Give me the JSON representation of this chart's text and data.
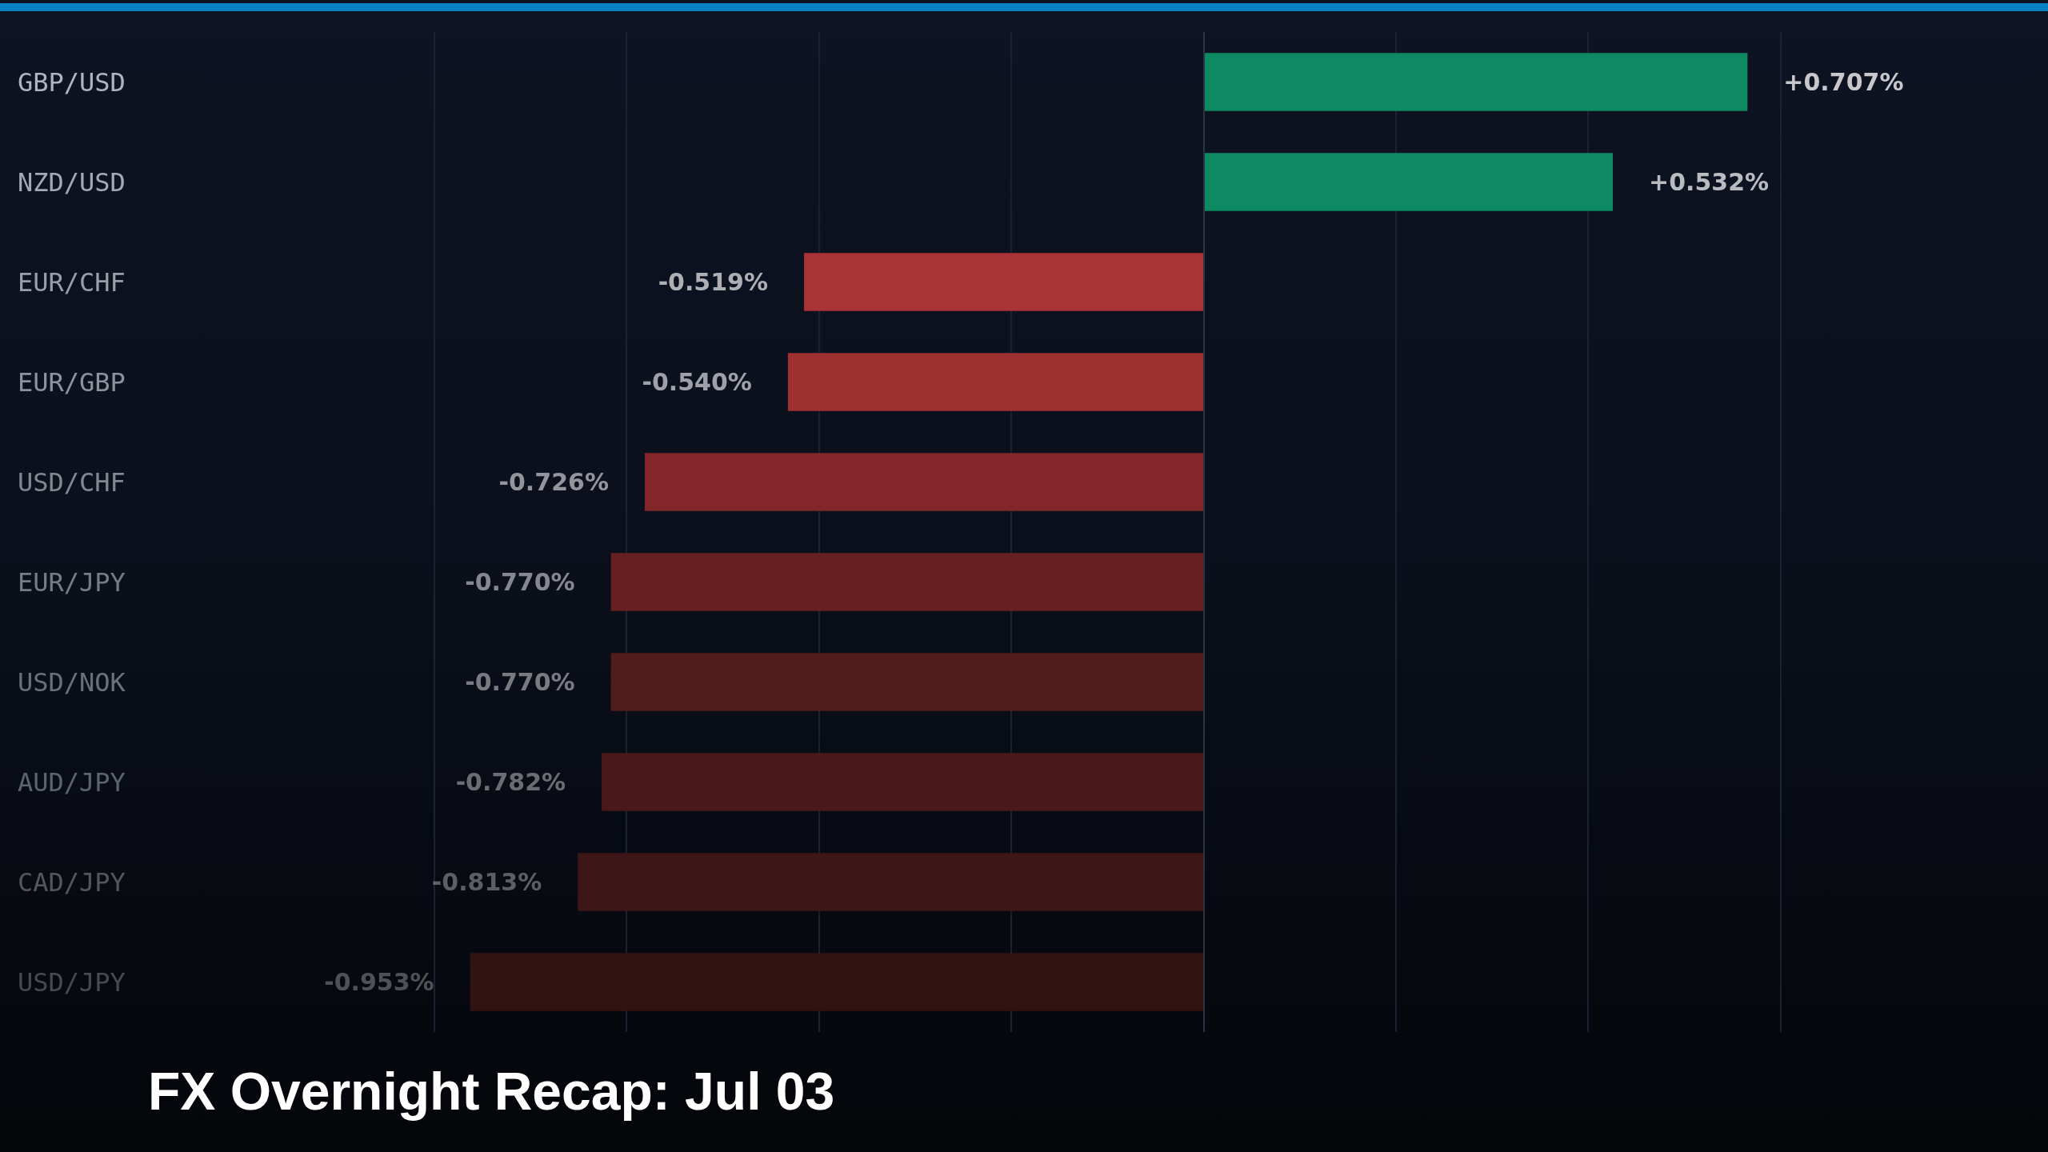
{
  "chart_data": {
    "type": "bar",
    "orientation": "horizontal",
    "title": "FX Overnight Recap: Jul 03",
    "categories": [
      "GBP/USD",
      "NZD/USD",
      "EUR/CHF",
      "EUR/GBP",
      "USD/CHF",
      "EUR/JPY",
      "USD/NOK",
      "AUD/JPY",
      "CAD/JPY",
      "USD/JPY"
    ],
    "values": [
      0.707,
      0.532,
      -0.519,
      -0.54,
      -0.726,
      -0.77,
      -0.77,
      -0.782,
      -0.813,
      -0.953
    ],
    "colors": [
      "#0e8a62",
      "#0e8a62",
      "#aa3335",
      "#9e3032",
      "#82262a",
      "#66201f",
      "#521b1c",
      "#491819",
      "#3d1617",
      "#321314"
    ],
    "value_labels": [
      "+0.707%",
      "+0.532%",
      "-0.519%",
      "-0.540%",
      "-0.726%",
      "-0.770%",
      "-0.770%",
      "-0.782%",
      "-0.813%",
      "-0.953%"
    ],
    "xticks": [
      {
        "value": -1,
        "label": null
      },
      {
        "value": -0.75,
        "label": null
      },
      {
        "value": -0.5,
        "label": null
      },
      {
        "value": -0.25,
        "label": null
      },
      {
        "value": 0,
        "label": null
      },
      {
        "value": 0.25,
        "label": null
      },
      {
        "value": 0.5,
        "label": null
      },
      {
        "value": 0.75,
        "label": null
      }
    ],
    "grid": "x",
    "tick_labels": "y",
    "ref_lines": [
      {
        "axis": "x",
        "value": 0,
        "color": "#2c3342"
      }
    ]
  }
}
